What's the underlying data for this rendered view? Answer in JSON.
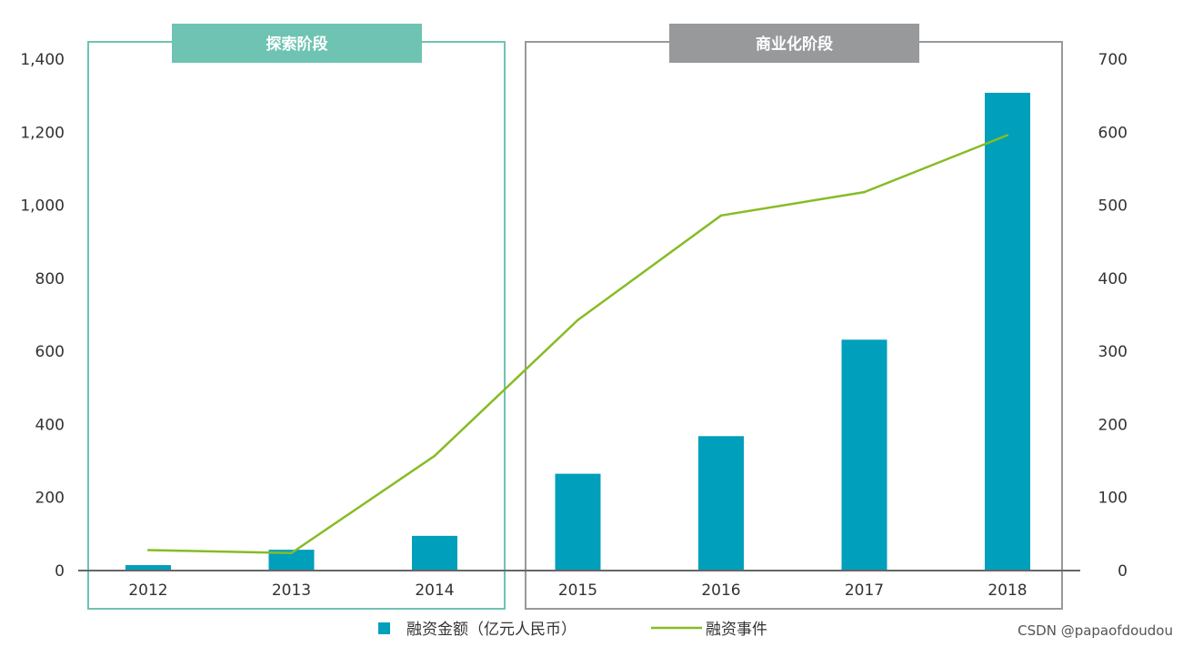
{
  "chart_data": {
    "type": "bar",
    "categories": [
      "2012",
      "2013",
      "2014",
      "2015",
      "2016",
      "2017",
      "2018"
    ],
    "series": [
      {
        "name": "融资金额（亿元人民币）",
        "kind": "bar",
        "axis": "left",
        "color": "#009fbb",
        "values": [
          15,
          57,
          95,
          265,
          368,
          632,
          1308
        ]
      },
      {
        "name": "融资事件",
        "kind": "line",
        "axis": "right",
        "color": "#86bc25",
        "values": [
          28,
          24,
          157,
          343,
          486,
          518,
          596
        ]
      }
    ],
    "left_axis": {
      "ticks": [
        "0",
        "200",
        "400",
        "600",
        "800",
        "1,000",
        "1,200",
        "1,400"
      ],
      "ylim": [
        0,
        1400
      ]
    },
    "right_axis": {
      "ticks": [
        "0",
        "100",
        "200",
        "300",
        "400",
        "500",
        "600",
        "700"
      ],
      "ylim": [
        0,
        700
      ]
    },
    "phases": [
      {
        "label": "探索阶段",
        "categories": [
          "2012",
          "2013",
          "2014"
        ],
        "color": "#6fc3b2"
      },
      {
        "label": "商业化阶段",
        "categories": [
          "2015",
          "2016",
          "2017",
          "2018"
        ],
        "color": "#97999b"
      }
    ],
    "grid": false,
    "legend_position": "bottom-center"
  },
  "watermark": "CSDN @papaofdoudou"
}
